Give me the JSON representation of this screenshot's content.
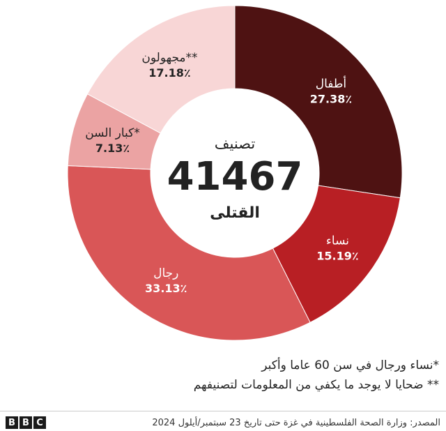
{
  "chart_data": {
    "type": "pie",
    "donut": true,
    "categories": [
      "أطفال",
      "نساء",
      "رجال",
      "كبار السن*",
      "مجهولون**"
    ],
    "labels": [
      "27.38٪",
      "15.19٪",
      "33.13٪",
      "7.13٪",
      "17.18٪"
    ],
    "values": [
      27.38,
      15.19,
      33.13,
      7.13,
      17.18
    ],
    "colors": [
      "#4e1212",
      "#b81f24",
      "#d95657",
      "#eba3a3",
      "#f8d6d6"
    ],
    "label_colors": [
      "#ffffff",
      "#ffffff",
      "#ffffff",
      "#222222",
      "#222222"
    ],
    "center": {
      "top": "تصنيف",
      "number": "41467",
      "bottom": "القتلى"
    }
  },
  "notes": {
    "note1": "*نساء ورجال في سن 60 عاما وأكبر",
    "note2": "** ضحايا لا يوجد ما يكفي من المعلومات لتصنيفهم"
  },
  "footer": {
    "source": "المصدر: وزارة الصحة الفلسطينية في غزة حتى تاريخ 23 سبتمبر/أيلول 2024",
    "logo": [
      "B",
      "B",
      "C"
    ]
  }
}
